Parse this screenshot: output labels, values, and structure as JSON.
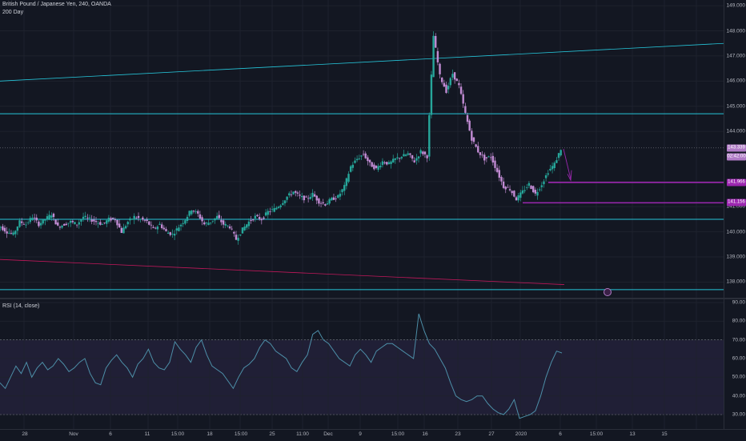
{
  "legend": {
    "symbol": "British Pound / Japanese Yen, 240, OANDA",
    "indicator": "200 Day",
    "rsi": "RSI (14, close)"
  },
  "price_axis": {
    "ticks": [
      "149.000",
      "148.000",
      "147.000",
      "146.000",
      "145.000",
      "144.000",
      "142.000",
      "141.000",
      "140.000",
      "139.000",
      "138.000"
    ],
    "tick_values": [
      149,
      148,
      147,
      146,
      145,
      144,
      142,
      141,
      140,
      139,
      138
    ],
    "current_price": "143.339",
    "countdown": "02:42:00",
    "level_upper": "141.966",
    "level_lower": "141.156"
  },
  "rsi_axis": {
    "ticks": [
      "90.00",
      "80.00",
      "70.00",
      "60.00",
      "50.00",
      "40.00",
      "30.00"
    ],
    "tick_values": [
      90,
      80,
      70,
      60,
      50,
      40,
      30
    ]
  },
  "time_axis": {
    "labels": [
      "28",
      "Nov",
      "6",
      "11",
      "15:00",
      "18",
      "15:00",
      "25",
      "11:00",
      "Dec",
      "9",
      "15:00",
      "16",
      "23",
      "27",
      "2020",
      "6",
      "15:00",
      "13",
      "15"
    ]
  },
  "colors": {
    "background": "#131722",
    "up_candle": "#26a69a",
    "down_candle": "#c18bd3",
    "horizontal_line": "#26c6da",
    "purple_level": "#9c27b0",
    "rsi_band": "#7e57c2",
    "rsi_line": "#4d8fa8",
    "ma200": "#c2185b"
  },
  "chart_data": [
    {
      "type": "candlestick",
      "title": "British Pound / Japanese Yen, 240, OANDA",
      "ylim": [
        137.6,
        149.1
      ],
      "close_path": [
        140.2,
        140.0,
        139.9,
        140.4,
        140.3,
        140.6,
        140.3,
        140.5,
        140.7,
        140.2,
        140.3,
        140.4,
        140.3,
        140.6,
        140.5,
        140.4,
        140.3,
        140.5,
        140.5,
        140.0,
        140.4,
        140.6,
        140.5,
        140.4,
        140.1,
        140.3,
        140.0,
        139.9,
        140.2,
        140.5,
        140.9,
        140.7,
        140.3,
        140.4,
        140.6,
        140.3,
        140.2,
        139.7,
        140.1,
        140.4,
        140.6,
        140.5,
        140.8,
        140.9,
        141.1,
        141.4,
        141.6,
        141.4,
        141.3,
        141.5,
        141.2,
        141.1,
        141.3,
        141.4,
        141.8,
        142.6,
        142.9,
        143.1,
        142.7,
        142.5,
        142.8,
        142.7,
        142.9,
        143.0,
        143.1,
        142.8,
        143.2,
        143.0,
        147.8,
        146.2,
        145.6,
        146.3,
        145.8,
        144.7,
        143.7,
        143.2,
        142.9,
        143.0,
        142.4,
        141.8,
        141.7,
        141.3,
        141.6,
        141.9,
        141.5,
        141.9,
        142.4,
        142.7,
        143.3
      ],
      "ma200_start": 138.9,
      "ma200_end": 137.9,
      "trendline_start": 146.0,
      "trendline_end": 147.5,
      "horizontal_lines": [
        144.7,
        140.5,
        137.7
      ],
      "levels": {
        "upper": 141.966,
        "lower": 141.156
      }
    },
    {
      "type": "line",
      "title": "RSI (14, close)",
      "ylim": [
        24,
        90
      ],
      "band": [
        30,
        70
      ],
      "values": [
        47,
        44,
        50,
        56,
        52,
        58,
        50,
        55,
        58,
        54,
        56,
        60,
        57,
        53,
        55,
        58,
        60,
        52,
        47,
        46,
        55,
        59,
        62,
        58,
        55,
        50,
        57,
        60,
        65,
        58,
        55,
        54,
        58,
        69,
        65,
        62,
        58,
        66,
        70,
        62,
        56,
        54,
        52,
        48,
        44,
        50,
        55,
        57,
        60,
        66,
        70,
        68,
        64,
        62,
        60,
        55,
        53,
        58,
        62,
        73,
        75,
        70,
        68,
        64,
        60,
        58,
        56,
        62,
        65,
        62,
        58,
        64,
        66,
        68,
        68,
        66,
        64,
        62,
        60,
        84,
        75,
        68,
        65,
        60,
        55,
        47,
        40,
        38,
        37,
        38,
        40,
        40,
        36,
        33,
        31,
        30,
        33,
        38,
        28,
        29,
        30,
        32,
        40,
        50,
        58,
        64,
        63
      ]
    }
  ]
}
